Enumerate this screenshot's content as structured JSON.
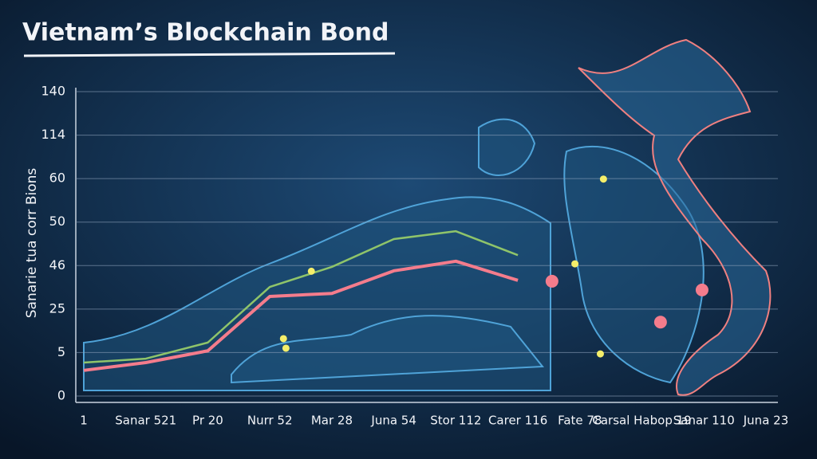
{
  "chart_data": {
    "type": "line",
    "title": "Vietnam’s Blockchain Bond",
    "y_label": "Sanarie tua corr Bions",
    "categories": [
      "1",
      "Sanar 521",
      "Pr 20",
      "Nurr 52",
      "Mar 28",
      "Juna 54",
      "Stor 112",
      "Carer 116",
      "Fate 78",
      "Carsal Habop 19",
      "Sanar 110",
      "Juna 23"
    ],
    "ylim": [
      0,
      7
    ],
    "yticks": [
      {
        "value": 0,
        "label": "0"
      },
      {
        "value": 1,
        "label": "5"
      },
      {
        "value": 2,
        "label": "25"
      },
      {
        "value": 3,
        "label": "46"
      },
      {
        "value": 4,
        "label": "50"
      },
      {
        "value": 5,
        "label": "60"
      },
      {
        "value": 6,
        "label": "114"
      },
      {
        "value": 7,
        "label": "140"
      }
    ],
    "grid": true,
    "series": [
      {
        "color": "#f47c8c",
        "values": [
          0.59,
          0.77,
          1.04,
          2.29,
          2.36,
          2.88,
          3.1,
          2.66,
          null,
          null,
          null,
          null
        ]
      },
      {
        "color": "#8fc46a",
        "values": [
          0.77,
          0.86,
          1.23,
          2.51,
          2.97,
          3.61,
          3.79,
          3.24,
          null,
          null,
          null,
          null
        ]
      }
    ],
    "points": [
      {
        "color": "#f47c8c",
        "x": [
          7.55,
          9.3,
          9.97
        ],
        "y": [
          2.64,
          1.7,
          2.44
        ]
      },
      {
        "color": "#f4ee6a",
        "x": [
          3.22,
          3.26,
          7.92,
          8.38,
          8.33,
          3.67
        ],
        "y": [
          1.32,
          1.1,
          3.04,
          4.99,
          0.97,
          2.87
        ]
      }
    ]
  }
}
